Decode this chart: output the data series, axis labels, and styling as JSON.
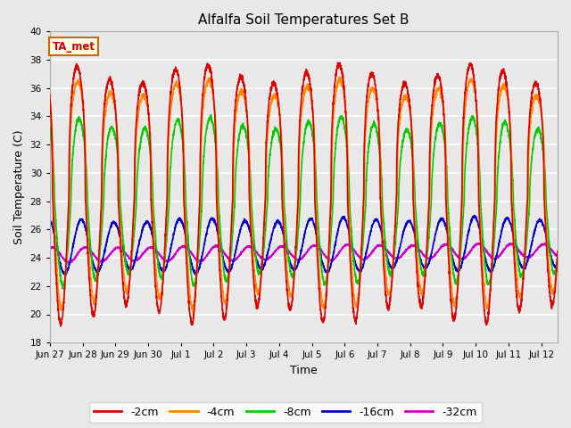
{
  "title": "Alfalfa Soil Temperatures Set B",
  "xlabel": "Time",
  "ylabel": "Soil Temperature (C)",
  "ylim": [
    18,
    40
  ],
  "yticks": [
    18,
    20,
    22,
    24,
    26,
    28,
    30,
    32,
    34,
    36,
    38,
    40
  ],
  "background_color": "#e8e8e8",
  "plot_bg_color": "#e8e8e8",
  "annotation_text": "TA_met",
  "annotation_bg": "#ffffee",
  "annotation_border": "#cc6600",
  "annotation_text_color": "#cc0000",
  "series": {
    "-2cm": {
      "color": "#dd0000",
      "lw": 1.2
    },
    "-4cm": {
      "color": "#ff8800",
      "lw": 1.2
    },
    "-8cm": {
      "color": "#00cc00",
      "lw": 1.2
    },
    "-16cm": {
      "color": "#0000cc",
      "lw": 1.2
    },
    "-32cm": {
      "color": "#cc00cc",
      "lw": 1.2
    }
  },
  "xtick_labels": [
    "Jun 27",
    "Jun 28",
    "Jun 29",
    "Jun 30",
    "Jul 1",
    "Jul 2",
    "Jul 3",
    "Jul 4",
    "Jul 5",
    "Jul 6",
    "Jul 7",
    "Jul 8",
    "Jul 9",
    "Jul 10",
    "Jul 11",
    "Jul 12"
  ],
  "n_days": 15.5,
  "legend_ncol": 5,
  "figsize": [
    6.4,
    4.8
  ],
  "dpi": 100
}
